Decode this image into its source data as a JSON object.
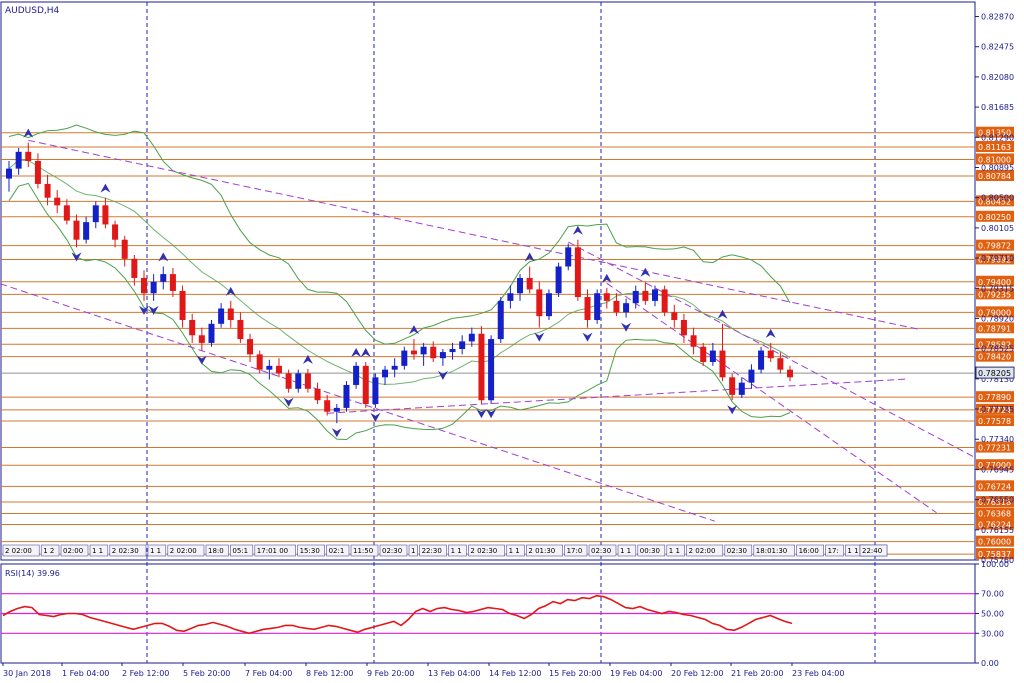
{
  "chart_data": {
    "type": "candlestick",
    "symbol_label": "AUDUSD,H4",
    "price_axis_ticks": [
      "0.82870",
      "0.82475",
      "0.82080",
      "0.81685",
      "0.81290",
      "0.80895",
      "0.80500",
      "0.80105",
      "0.79710",
      "0.79315",
      "0.78920",
      "0.78525",
      "0.78130",
      "0.77735",
      "0.77340",
      "0.76945",
      "0.76550",
      "0.76155",
      "0.75760"
    ],
    "ylim": [
      0.7576,
      0.8306
    ],
    "horizontal_levels": [
      0.8135,
      0.81163,
      0.81,
      0.80784,
      0.80452,
      0.8025,
      0.79872,
      0.79692,
      0.794,
      0.79235,
      0.79,
      0.78791,
      0.78582,
      0.7842,
      0.7789,
      0.77724,
      0.77578,
      0.77231,
      0.77,
      0.76724,
      0.76518,
      0.76368,
      0.76224,
      0.76,
      0.75837
    ],
    "current_price": "0.78205",
    "time_axis_labels": [
      "30 Jan 2018",
      "1 Feb 04:00",
      "2 Feb 12:00",
      "5 Feb 20:00",
      "7 Feb 04:00",
      "8 Feb 12:00",
      "9 Feb 20:00",
      "13 Feb 04:00",
      "14 Feb 12:00",
      "15 Feb 20:00",
      "19 Feb 04:00",
      "20 Feb 12:00",
      "21 Feb 20:00",
      "23 Feb 04:00"
    ],
    "vline_labels": [
      "2 02:00",
      "1 2",
      "02:00",
      "1 1",
      "2 02:30",
      "1 1",
      "2 02:00",
      "18:0",
      "05:1",
      "17:01 00",
      "15:30",
      "02:1",
      "11:50",
      "02:30",
      "1",
      "22:30",
      "1 1",
      "2 02:30",
      "1 1",
      "2 01:30",
      "17:0",
      "02:30",
      "1 1",
      "00:30",
      "1 1",
      "2 02:00",
      "02:30",
      "18:01:30",
      "16:00",
      "17:",
      "1 1",
      "22:30",
      "1",
      "22:40"
    ],
    "ohlc": [
      [
        0.8075,
        0.8098,
        0.8058,
        0.8088
      ],
      [
        0.8088,
        0.8115,
        0.808,
        0.811
      ],
      [
        0.811,
        0.8122,
        0.809,
        0.8098
      ],
      [
        0.8098,
        0.8108,
        0.8062,
        0.8068
      ],
      [
        0.8068,
        0.808,
        0.804,
        0.805
      ],
      [
        0.805,
        0.806,
        0.803,
        0.804
      ],
      [
        0.804,
        0.8048,
        0.8015,
        0.802
      ],
      [
        0.802,
        0.8028,
        0.7985,
        0.7995
      ],
      [
        0.7995,
        0.8025,
        0.799,
        0.8018
      ],
      [
        0.8018,
        0.8045,
        0.801,
        0.804
      ],
      [
        0.804,
        0.805,
        0.801,
        0.8015
      ],
      [
        0.8015,
        0.802,
        0.7985,
        0.7995
      ],
      [
        0.7995,
        0.8,
        0.796,
        0.797
      ],
      [
        0.797,
        0.7975,
        0.7935,
        0.7945
      ],
      [
        0.7945,
        0.7955,
        0.7915,
        0.7925
      ],
      [
        0.7925,
        0.795,
        0.7915,
        0.794
      ],
      [
        0.794,
        0.796,
        0.793,
        0.795
      ],
      [
        0.795,
        0.7958,
        0.792,
        0.7928
      ],
      [
        0.7928,
        0.7935,
        0.788,
        0.789
      ],
      [
        0.789,
        0.7898,
        0.786,
        0.787
      ],
      [
        0.787,
        0.788,
        0.785,
        0.786
      ],
      [
        0.786,
        0.789,
        0.7855,
        0.7885
      ],
      [
        0.7885,
        0.7912,
        0.788,
        0.7905
      ],
      [
        0.7905,
        0.7915,
        0.788,
        0.789
      ],
      [
        0.789,
        0.79,
        0.786,
        0.7865
      ],
      [
        0.7865,
        0.7872,
        0.7835,
        0.7845
      ],
      [
        0.7845,
        0.785,
        0.782,
        0.7825
      ],
      [
        0.7825,
        0.7838,
        0.7812,
        0.783
      ],
      [
        0.783,
        0.784,
        0.7815,
        0.782
      ],
      [
        0.782,
        0.7825,
        0.7795,
        0.78
      ],
      [
        0.78,
        0.7825,
        0.7795,
        0.782
      ],
      [
        0.782,
        0.7826,
        0.7795,
        0.78
      ],
      [
        0.78,
        0.7808,
        0.778,
        0.7785
      ],
      [
        0.7785,
        0.7792,
        0.7765,
        0.777
      ],
      [
        0.777,
        0.778,
        0.7755,
        0.7775
      ],
      [
        0.7775,
        0.781,
        0.777,
        0.7805
      ],
      [
        0.7805,
        0.7835,
        0.78,
        0.783
      ],
      [
        0.783,
        0.7835,
        0.7775,
        0.778
      ],
      [
        0.778,
        0.782,
        0.7775,
        0.7815
      ],
      [
        0.7815,
        0.783,
        0.7805,
        0.7825
      ],
      [
        0.7825,
        0.784,
        0.7815,
        0.783
      ],
      [
        0.783,
        0.7855,
        0.7825,
        0.785
      ],
      [
        0.785,
        0.7865,
        0.7838,
        0.7845
      ],
      [
        0.7845,
        0.786,
        0.783,
        0.7855
      ],
      [
        0.7855,
        0.7862,
        0.7835,
        0.784
      ],
      [
        0.784,
        0.7852,
        0.783,
        0.7848
      ],
      [
        0.7848,
        0.786,
        0.7838,
        0.7852
      ],
      [
        0.7852,
        0.787,
        0.7845,
        0.7862
      ],
      [
        0.7862,
        0.788,
        0.7855,
        0.7872
      ],
      [
        0.7872,
        0.7882,
        0.778,
        0.7785
      ],
      [
        0.7785,
        0.787,
        0.778,
        0.7865
      ],
      [
        0.7865,
        0.792,
        0.786,
        0.7915
      ],
      [
        0.7915,
        0.7935,
        0.7905,
        0.7925
      ],
      [
        0.7925,
        0.795,
        0.7915,
        0.7945
      ],
      [
        0.7945,
        0.796,
        0.7925,
        0.793
      ],
      [
        0.793,
        0.794,
        0.788,
        0.7895
      ],
      [
        0.7895,
        0.793,
        0.789,
        0.7925
      ],
      [
        0.7925,
        0.7965,
        0.792,
        0.796
      ],
      [
        0.796,
        0.799,
        0.7955,
        0.7985
      ],
      [
        0.7985,
        0.7995,
        0.7915,
        0.792
      ],
      [
        0.792,
        0.793,
        0.788,
        0.789
      ],
      [
        0.789,
        0.793,
        0.7885,
        0.7925
      ],
      [
        0.7925,
        0.7932,
        0.7905,
        0.7915
      ],
      [
        0.7915,
        0.7925,
        0.7895,
        0.79
      ],
      [
        0.79,
        0.7918,
        0.7893,
        0.7912
      ],
      [
        0.7912,
        0.7935,
        0.7905,
        0.7928
      ],
      [
        0.7928,
        0.794,
        0.791,
        0.7915
      ],
      [
        0.7915,
        0.7935,
        0.7908,
        0.793
      ],
      [
        0.793,
        0.7935,
        0.7895,
        0.79
      ],
      [
        0.79,
        0.791,
        0.788,
        0.789
      ],
      [
        0.789,
        0.7898,
        0.786,
        0.787
      ],
      [
        0.787,
        0.788,
        0.7845,
        0.7855
      ],
      [
        0.7855,
        0.786,
        0.783,
        0.7835
      ],
      [
        0.7835,
        0.786,
        0.783,
        0.785
      ],
      [
        0.785,
        0.7885,
        0.781,
        0.7815
      ],
      [
        0.7815,
        0.782,
        0.7785,
        0.7792
      ],
      [
        0.7792,
        0.7815,
        0.7788,
        0.7808
      ],
      [
        0.7808,
        0.7832,
        0.78,
        0.7825
      ],
      [
        0.7825,
        0.7855,
        0.782,
        0.785
      ],
      [
        0.785,
        0.786,
        0.7835,
        0.784
      ],
      [
        0.784,
        0.7848,
        0.782,
        0.7825
      ],
      [
        0.7825,
        0.783,
        0.781,
        0.7815
      ]
    ],
    "rsi": {
      "label": "RSI(14) 39.96",
      "value": 39.96,
      "ylim": [
        0,
        100
      ],
      "ticks": [
        "100.00",
        "70.00",
        "50.00",
        "30.00",
        "0.00"
      ],
      "levels": [
        70,
        50,
        30
      ],
      "values": [
        48,
        52,
        55,
        57,
        56,
        49,
        48,
        47,
        49,
        50,
        50,
        49,
        46,
        44,
        42,
        40,
        38,
        36,
        34,
        36,
        38,
        40,
        40,
        37,
        33,
        32,
        35,
        38,
        39,
        41,
        39,
        37,
        34,
        32,
        30,
        32,
        34,
        35,
        36,
        38,
        38,
        36,
        35,
        34,
        36,
        38,
        37,
        35,
        33,
        31,
        34,
        36,
        38,
        40,
        42,
        38,
        44,
        52,
        55,
        52,
        55,
        56,
        54,
        53,
        51,
        52,
        54,
        56,
        55,
        54,
        50,
        48,
        45,
        49,
        55,
        58,
        62,
        60,
        64,
        63,
        66,
        65,
        68,
        67,
        64,
        60,
        56,
        55,
        57,
        54,
        52,
        50,
        52,
        51,
        49,
        48,
        46,
        44,
        40,
        38,
        34,
        33,
        36,
        40,
        44,
        46,
        48,
        45,
        42,
        40
      ]
    }
  }
}
